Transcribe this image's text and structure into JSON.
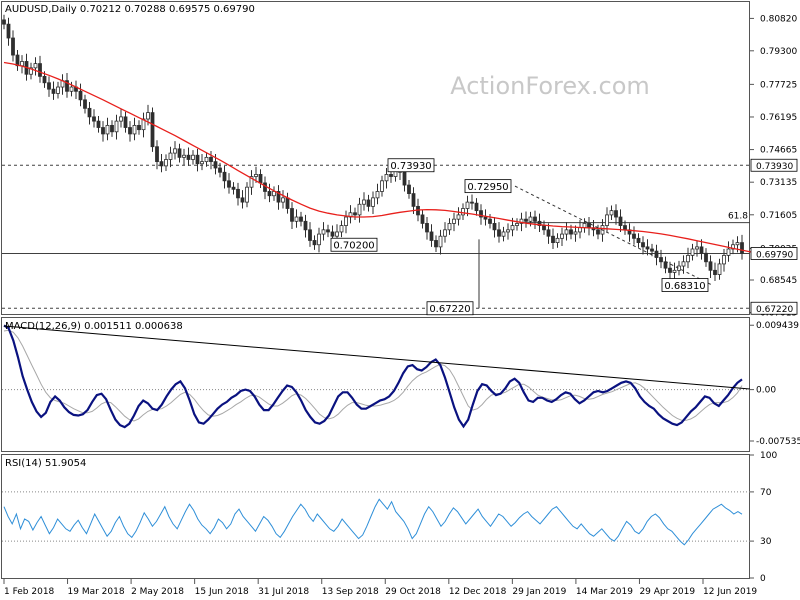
{
  "header": {
    "symbol_tf": "AUDUSD,Daily",
    "ohlc": "0.70212 0.70288 0.69575 0.69790"
  },
  "watermark": "ActionForex.com",
  "colors": {
    "candle": "#2f2f2f",
    "ma": "#e8201c",
    "macd": "#0a1280",
    "signal": "#a8a8a8",
    "rsi": "#2f8fd8",
    "grid_line": "#404040",
    "watermark": "#c8c8c8"
  },
  "chart_data": [
    {
      "type": "candlestick",
      "title": "AUDUSD,Daily",
      "ylim": [
        0.6695,
        0.8159
      ],
      "y_ticks": [
        "0.80820",
        "0.79300",
        "0.77725",
        "0.76195",
        "0.74665",
        "0.73135",
        "0.71605",
        "0.70025",
        "0.68545",
        "0.67015"
      ],
      "price_labels": [
        "0.73930",
        "0.69790",
        "0.67220"
      ],
      "horizontal_lines": [
        {
          "value": 0.7393,
          "style": "dashed"
        },
        {
          "value": 0.6979,
          "style": "solid"
        },
        {
          "value": 0.6722,
          "style": "dashed"
        },
        {
          "value": 0.7124,
          "style": "solid",
          "label": "61.8"
        }
      ],
      "callouts": [
        "0.73930",
        "0.72950",
        "0.70200",
        "0.68310",
        "0.67220"
      ],
      "x_labels": [
        "1 Feb 2018",
        "19 Mar 2018",
        "2 May 2018",
        "15 Jun 2018",
        "31 Jul 2018",
        "13 Sep 2018",
        "29 Oct 2018",
        "12 Dec 2018",
        "29 Jan 2019",
        "14 Mar 2019",
        "29 Apr 2019",
        "12 Jun 2019"
      ],
      "closes": [
        0.8055,
        0.799,
        0.791,
        0.786,
        0.788,
        0.782,
        0.785,
        0.787,
        0.781,
        0.778,
        0.775,
        0.773,
        0.776,
        0.779,
        0.774,
        0.776,
        0.774,
        0.77,
        0.766,
        0.762,
        0.76,
        0.757,
        0.754,
        0.758,
        0.755,
        0.76,
        0.762,
        0.757,
        0.754,
        0.758,
        0.756,
        0.761,
        0.764,
        0.748,
        0.741,
        0.739,
        0.742,
        0.745,
        0.747,
        0.743,
        0.744,
        0.742,
        0.744,
        0.74,
        0.741,
        0.743,
        0.741,
        0.738,
        0.736,
        0.732,
        0.729,
        0.728,
        0.724,
        0.722,
        0.729,
        0.734,
        0.735,
        0.731,
        0.727,
        0.725,
        0.727,
        0.722,
        0.724,
        0.719,
        0.713,
        0.715,
        0.713,
        0.709,
        0.704,
        0.702,
        0.707,
        0.709,
        0.708,
        0.706,
        0.708,
        0.711,
        0.715,
        0.717,
        0.716,
        0.721,
        0.723,
        0.72,
        0.724,
        0.727,
        0.732,
        0.735,
        0.734,
        0.739,
        0.736,
        0.73,
        0.726,
        0.72,
        0.716,
        0.712,
        0.708,
        0.704,
        0.701,
        0.706,
        0.709,
        0.712,
        0.714,
        0.716,
        0.719,
        0.722,
        0.7215,
        0.718,
        0.715,
        0.714,
        0.712,
        0.709,
        0.706,
        0.708,
        0.709,
        0.711,
        0.712,
        0.714,
        0.713,
        0.715,
        0.713,
        0.711,
        0.709,
        0.706,
        0.703,
        0.705,
        0.707,
        0.709,
        0.707,
        0.708,
        0.71,
        0.712,
        0.71,
        0.709,
        0.707,
        0.711,
        0.716,
        0.718,
        0.715,
        0.711,
        0.709,
        0.707,
        0.705,
        0.703,
        0.701,
        0.7,
        0.699,
        0.696,
        0.694,
        0.691,
        0.689,
        0.69,
        0.692,
        0.694,
        0.697,
        0.7,
        0.701,
        0.698,
        0.694,
        0.69,
        0.688,
        0.693,
        0.697,
        0.7,
        0.702,
        0.703,
        0.698
      ],
      "ma_values": [
        0.7875,
        0.7868,
        0.7858,
        0.7845,
        0.783,
        0.7815,
        0.7798,
        0.778,
        0.776,
        0.774,
        0.772,
        0.77,
        0.7679,
        0.7658,
        0.7637,
        0.7616,
        0.7596,
        0.7575,
        0.7553,
        0.7532,
        0.7509,
        0.7486,
        0.7463,
        0.744,
        0.7417,
        0.7393,
        0.7368,
        0.7344,
        0.732,
        0.7296,
        0.7273,
        0.7251,
        0.723,
        0.721,
        0.7192,
        0.7178,
        0.7168,
        0.716,
        0.7155,
        0.715,
        0.715,
        0.7152,
        0.7157,
        0.7165,
        0.7172,
        0.7178,
        0.7183,
        0.7185,
        0.7184,
        0.7181,
        0.7176,
        0.717,
        0.7164,
        0.7157,
        0.715,
        0.7143,
        0.7135,
        0.7128,
        0.7121,
        0.7116,
        0.7112,
        0.7108,
        0.7105,
        0.7103,
        0.7101,
        0.7099,
        0.7097,
        0.7095,
        0.7092,
        0.7089,
        0.7086,
        0.7082,
        0.7077,
        0.7071,
        0.7064,
        0.7056,
        0.7048,
        0.7039,
        0.703,
        0.7021,
        0.7012,
        0.7003,
        0.6995,
        0.6986,
        0.6979
      ],
      "ma_step": 2
    },
    {
      "type": "line",
      "title": "MACD(12,26,9) 0.001511 0.000638",
      "ylim": [
        -0.009,
        0.0105
      ],
      "y_ticks": [
        "0.009439",
        "0.00",
        "-0.007535"
      ],
      "series": [
        {
          "name": "MACD",
          "values": [
            0.0094,
            0.009,
            0.0072,
            0.0048,
            0.002,
            0.0,
            -0.0018,
            -0.0032,
            -0.004,
            -0.0034,
            -0.0018,
            -0.001,
            -0.0016,
            -0.0026,
            -0.0033,
            -0.0037,
            -0.0038,
            -0.0036,
            -0.003,
            -0.0018,
            -0.0008,
            -0.0006,
            -0.0014,
            -0.003,
            -0.0044,
            -0.0052,
            -0.0055,
            -0.005,
            -0.0038,
            -0.0024,
            -0.0016,
            -0.002,
            -0.0028,
            -0.003,
            -0.0022,
            -0.001,
            0.0,
            0.0008,
            0.0012,
            0.0002,
            -0.0016,
            -0.0036,
            -0.0048,
            -0.005,
            -0.0044,
            -0.0036,
            -0.0028,
            -0.0022,
            -0.0018,
            -0.0012,
            -0.0008,
            -0.0002,
            0.0,
            -0.0002,
            -0.001,
            -0.0022,
            -0.003,
            -0.003,
            -0.0022,
            -0.0012,
            -0.0002,
            0.0006,
            0.0004,
            -0.0004,
            -0.0016,
            -0.003,
            -0.004,
            -0.0048,
            -0.005,
            -0.0046,
            -0.0038,
            -0.0024,
            -0.001,
            -0.0004,
            -0.0004,
            -0.0012,
            -0.0022,
            -0.0028,
            -0.0028,
            -0.0024,
            -0.002,
            -0.0016,
            -0.0014,
            -0.001,
            -0.0002,
            0.001,
            0.0024,
            0.0034,
            0.0036,
            0.003,
            0.0028,
            0.0033,
            0.004,
            0.0044,
            0.0036,
            0.0018,
            -0.0004,
            -0.0026,
            -0.0044,
            -0.0054,
            -0.0044,
            -0.0022,
            -0.0002,
            0.0008,
            0.0006,
            -0.0002,
            -0.0008,
            -0.0006,
            0.0002,
            0.0012,
            0.0016,
            0.001,
            -0.0004,
            -0.0016,
            -0.0018,
            -0.0012,
            -0.0012,
            -0.0016,
            -0.0018,
            -0.0014,
            -0.0008,
            -0.0004,
            -0.0006,
            -0.0014,
            -0.002,
            -0.0016,
            -0.001,
            -0.0004,
            -0.0002,
            -0.0004,
            -0.0002,
            0.0002,
            0.0006,
            0.001,
            0.0012,
            0.001,
            0.0002,
            -0.001,
            -0.0018,
            -0.0024,
            -0.0028,
            -0.0036,
            -0.0042,
            -0.0046,
            -0.005,
            -0.0052,
            -0.0048,
            -0.004,
            -0.0032,
            -0.0026,
            -0.0018,
            -0.001,
            -0.0012,
            -0.002,
            -0.0024,
            -0.0016,
            -0.0008,
            0.0002,
            0.001,
            0.0015
          ]
        },
        {
          "name": "Signal",
          "values": [
            0.0086,
            0.0087,
            0.0084,
            0.0076,
            0.0064,
            0.005,
            0.0036,
            0.0022,
            0.0008,
            -0.0004,
            -0.0012,
            -0.0016,
            -0.0018,
            -0.002,
            -0.0024,
            -0.0028,
            -0.0031,
            -0.0034,
            -0.0034,
            -0.0032,
            -0.0027,
            -0.0021,
            -0.0018,
            -0.0019,
            -0.0025,
            -0.0032,
            -0.0039,
            -0.0044,
            -0.0046,
            -0.0043,
            -0.0037,
            -0.0032,
            -0.0029,
            -0.0029,
            -0.0028,
            -0.0024,
            -0.0019,
            -0.0013,
            -0.0007,
            -0.0004,
            -0.0007,
            -0.0014,
            -0.0023,
            -0.0031,
            -0.0037,
            -0.0039,
            -0.0038,
            -0.0035,
            -0.0031,
            -0.0027,
            -0.0022,
            -0.0018,
            -0.0013,
            -0.0009,
            -0.0008,
            -0.0011,
            -0.0016,
            -0.0021,
            -0.0024,
            -0.0024,
            -0.002,
            -0.0015,
            -0.0009,
            -0.0006,
            -0.0008,
            -0.0013,
            -0.002,
            -0.0028,
            -0.0036,
            -0.0041,
            -0.0043,
            -0.0041,
            -0.0036,
            -0.0029,
            -0.0023,
            -0.0019,
            -0.0019,
            -0.0021,
            -0.0023,
            -0.0024,
            -0.0024,
            -0.0023,
            -0.0021,
            -0.0019,
            -0.0016,
            -0.0011,
            -0.0004,
            0.0005,
            0.0013,
            0.0019,
            0.0023,
            0.0026,
            0.003,
            0.0034,
            0.0037,
            0.0035,
            0.0029,
            0.0018,
            0.0004,
            -0.001,
            -0.0024,
            -0.003,
            -0.0028,
            -0.0022,
            -0.0014,
            -0.0008,
            -0.0006,
            -0.0006,
            -0.0004,
            0.0,
            0.0004,
            0.0008,
            0.0008,
            0.0004,
            -0.0002,
            -0.0008,
            -0.0011,
            -0.0013,
            -0.0015,
            -0.0016,
            -0.0015,
            -0.0012,
            -0.0009,
            -0.0008,
            -0.001,
            -0.0013,
            -0.0014,
            -0.0013,
            -0.001,
            -0.0007,
            -0.0005,
            -0.0003,
            0.0,
            0.0003,
            0.0006,
            0.0009,
            0.001,
            0.0007,
            0.0002,
            -0.0005,
            -0.0012,
            -0.0019,
            -0.0026,
            -0.0032,
            -0.0038,
            -0.0042,
            -0.0045,
            -0.0045,
            -0.0043,
            -0.0039,
            -0.0033,
            -0.0027,
            -0.0022,
            -0.0019,
            -0.0019,
            -0.0019,
            -0.0017,
            -0.0012,
            -0.0005,
            0.0006
          ]
        }
      ]
    },
    {
      "type": "line",
      "title": "RSI(14) 51.9054",
      "ylim": [
        0,
        100
      ],
      "y_ticks": [
        "100",
        "70",
        "30",
        "0"
      ],
      "levels": [
        70,
        30
      ],
      "series": [
        {
          "name": "RSI",
          "values": [
            58,
            50,
            44,
            52,
            40,
            48,
            46,
            39,
            45,
            50,
            43,
            36,
            41,
            48,
            44,
            40,
            38,
            43,
            47,
            41,
            36,
            44,
            52,
            46,
            40,
            34,
            38,
            45,
            50,
            42,
            36,
            33,
            38,
            45,
            53,
            48,
            42,
            46,
            52,
            58,
            50,
            44,
            40,
            47,
            54,
            60,
            55,
            48,
            43,
            40,
            36,
            41,
            48,
            45,
            40,
            44,
            52,
            56,
            50,
            46,
            42,
            38,
            44,
            50,
            47,
            42,
            36,
            33,
            38,
            44,
            50,
            55,
            60,
            56,
            50,
            46,
            52,
            48,
            44,
            40,
            38,
            42,
            48,
            44,
            40,
            36,
            32,
            35,
            42,
            50,
            58,
            64,
            60,
            56,
            62,
            54,
            50,
            46,
            40,
            32,
            36,
            44,
            52,
            58,
            54,
            48,
            42,
            46,
            52,
            57,
            54,
            49,
            44,
            48,
            52,
            56,
            50,
            46,
            42,
            47,
            52,
            50,
            46,
            42,
            45,
            49,
            52,
            54,
            50,
            47,
            44,
            48,
            52,
            56,
            58,
            54,
            50,
            46,
            42,
            40,
            44,
            40,
            36,
            34,
            37,
            40,
            36,
            32,
            30,
            34,
            40,
            46,
            43,
            38,
            36,
            40,
            46,
            50,
            52,
            49,
            44,
            40,
            38,
            34,
            30,
            27,
            31,
            36,
            40,
            44,
            48,
            52,
            56,
            58,
            60,
            57,
            55,
            52,
            54,
            51.9
          ]
        }
      ]
    }
  ]
}
